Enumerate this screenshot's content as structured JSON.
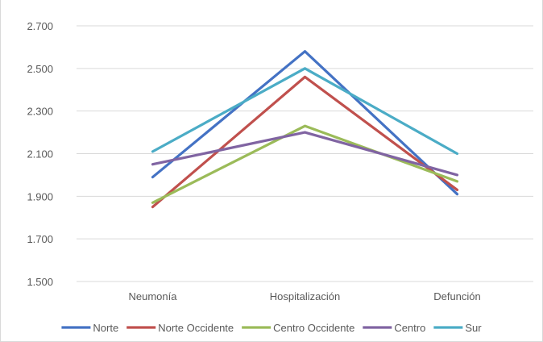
{
  "chart_data": {
    "type": "line",
    "categories": [
      "Neumonía",
      "Hospitalización",
      "Defunción"
    ],
    "ylim": [
      1.5,
      2.7
    ],
    "yticks": [
      "1.500",
      "1.700",
      "1.900",
      "2.100",
      "2.300",
      "2.500",
      "2.700"
    ],
    "ytick_values": [
      1.5,
      1.7,
      1.9,
      2.1,
      2.3,
      2.5,
      2.7
    ],
    "grid": true,
    "legend_position": "bottom",
    "series": [
      {
        "name": "Norte",
        "color": "#4472c4",
        "values": [
          1.99,
          2.58,
          1.91
        ]
      },
      {
        "name": "Norte Occidente",
        "color": "#c0504d",
        "values": [
          1.85,
          2.46,
          1.93
        ]
      },
      {
        "name": "Centro Occidente",
        "color": "#9bbb59",
        "values": [
          1.87,
          2.23,
          1.97
        ]
      },
      {
        "name": "Centro",
        "color": "#8064a2",
        "values": [
          2.05,
          2.2,
          2.0
        ]
      },
      {
        "name": "Sur",
        "color": "#4bacc6",
        "values": [
          2.11,
          2.5,
          2.1
        ]
      }
    ]
  }
}
